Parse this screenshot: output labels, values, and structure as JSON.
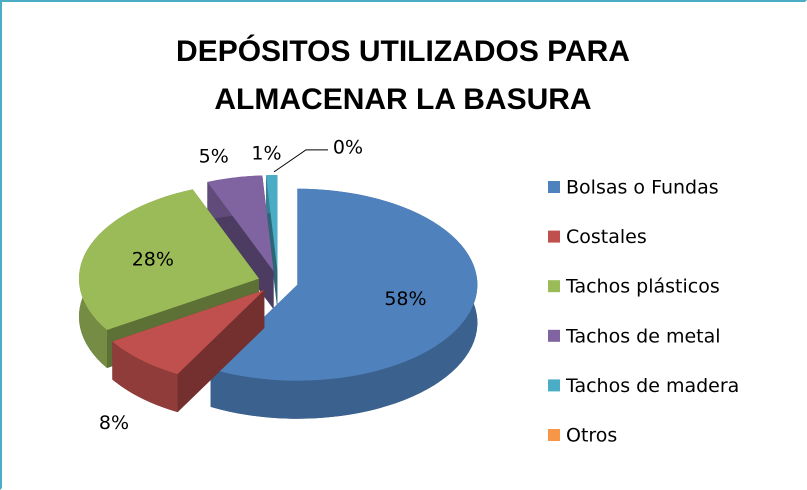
{
  "chart_data": {
    "type": "pie3d",
    "title": "DEPÓSITOS UTILIZADOS PARA ALMACENAR LA BASURA",
    "categories": [
      "Bolsas o Fundas",
      "Costales",
      "Tachos plásticos",
      "Tachos de metal",
      "Tachos de madera",
      "Otros"
    ],
    "values": [
      58,
      8,
      28,
      5,
      1,
      0
    ],
    "value_labels": [
      "58%",
      "8%",
      "28%",
      "5%",
      "1%",
      "0%"
    ],
    "colors": [
      "#4f81bd",
      "#c0504d",
      "#9bbb59",
      "#8064a2",
      "#4bacc6",
      "#f79646"
    ],
    "legend": "right"
  }
}
